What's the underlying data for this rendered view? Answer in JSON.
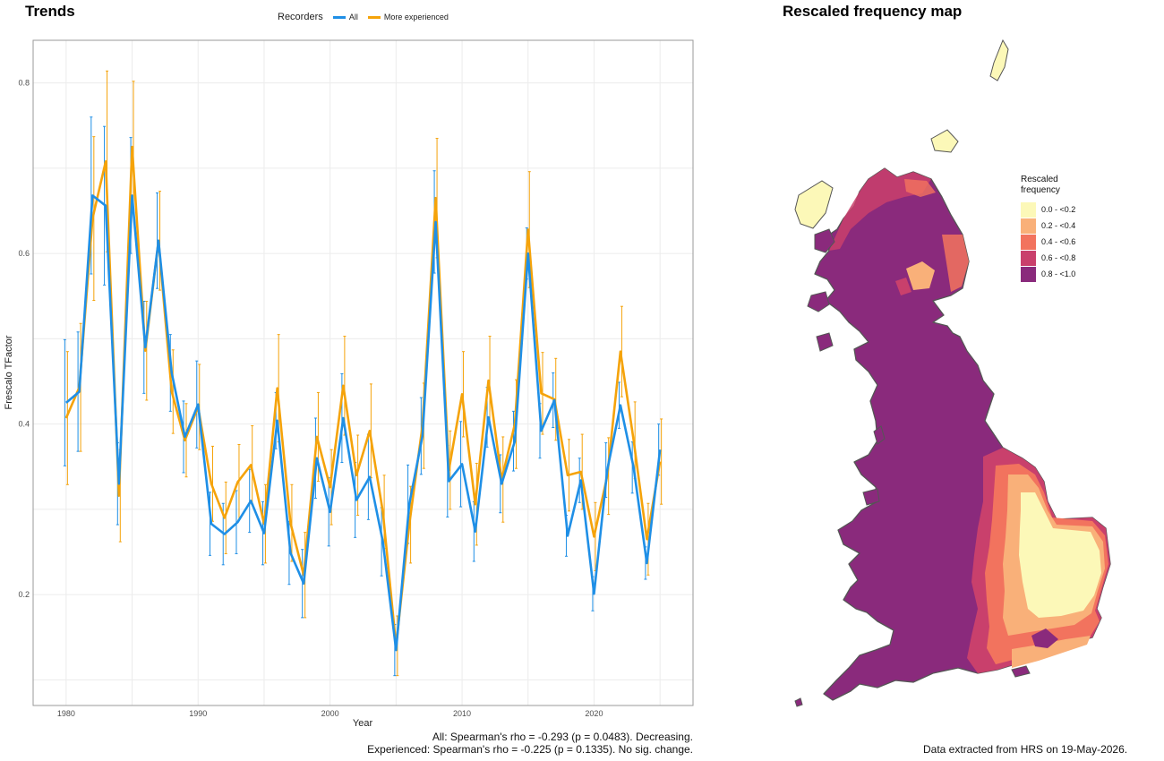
{
  "left_panel": {
    "title": "Trends"
  },
  "legend": {
    "title": "Recorders",
    "items": [
      {
        "label": "All",
        "color": "#1f8fe6"
      },
      {
        "label": "More experienced",
        "color": "#f5a30a"
      }
    ]
  },
  "stats": {
    "all": "All: Spearman's rho = -0.293 (p = 0.0483). Decreasing.",
    "experienced": "Experienced: Spearman's rho = -0.225 (p = 0.1335). No sig. change."
  },
  "right_panel": {
    "title": "Rescaled frequency map"
  },
  "map_legend": {
    "title": "Rescaled frequency",
    "classes": [
      {
        "label": "0.0 - <0.2",
        "color": "#fcf8b8"
      },
      {
        "label": "0.2 - <0.4",
        "color": "#f9b079"
      },
      {
        "label": "0.4 - <0.6",
        "color": "#f2735e"
      },
      {
        "label": "0.6 - <0.8",
        "color": "#c9406c"
      },
      {
        "label": "0.8 - <1.0",
        "color": "#8a2a7c"
      }
    ]
  },
  "footer": "Data extracted from HRS on 19-May-2026.",
  "chart_data": {
    "type": "line",
    "xlabel": "Year",
    "ylabel": "Frescalo TFactor",
    "xlim": [
      1977.5,
      2027.5
    ],
    "ylim": [
      0.07,
      0.85
    ],
    "xticks": [
      1980,
      1990,
      2000,
      2010,
      2020
    ],
    "yticks": [
      0.2,
      0.4,
      0.6,
      0.8
    ],
    "grid": true,
    "legend_position": "top",
    "x": [
      1980,
      1981,
      1982,
      1983,
      1984,
      1985,
      1986,
      1987,
      1988,
      1989,
      1990,
      1991,
      1992,
      1993,
      1994,
      1995,
      1996,
      1997,
      1998,
      1999,
      2000,
      2001,
      2002,
      2003,
      2004,
      2005,
      2006,
      2007,
      2008,
      2009,
      2010,
      2011,
      2012,
      2013,
      2014,
      2015,
      2016,
      2017,
      2018,
      2019,
      2020,
      2021,
      2022,
      2023,
      2024,
      2025
    ],
    "series": [
      {
        "name": "All",
        "color": "#1f8fe6",
        "values": [
          0.425,
          0.438,
          0.668,
          0.656,
          0.33,
          0.668,
          0.49,
          0.615,
          0.46,
          0.385,
          0.423,
          0.283,
          0.271,
          0.285,
          0.31,
          0.272,
          0.404,
          0.249,
          0.213,
          0.36,
          0.297,
          0.407,
          0.311,
          0.338,
          0.262,
          0.135,
          0.306,
          0.386,
          0.637,
          0.333,
          0.353,
          0.274,
          0.408,
          0.33,
          0.38,
          0.6,
          0.392,
          0.428,
          0.269,
          0.334,
          0.201,
          0.346,
          0.422,
          0.349,
          0.237,
          0.37
        ],
        "err": [
          0.074,
          0.07,
          0.092,
          0.093,
          0.048,
          0.068,
          0.054,
          0.056,
          0.045,
          0.042,
          0.051,
          0.037,
          0.036,
          0.037,
          0.037,
          0.037,
          0.033,
          0.037,
          0.04,
          0.047,
          0.04,
          0.052,
          0.044,
          0.05,
          0.04,
          0.03,
          0.046,
          0.045,
          0.06,
          0.042,
          0.05,
          0.035,
          0.035,
          0.034,
          0.035,
          0.03,
          0.032,
          0.032,
          0.024,
          0.026,
          0.02,
          0.032,
          0.027,
          0.03,
          0.019,
          0.03
        ]
      },
      {
        "name": "More experienced",
        "color": "#f5a30a",
        "values": [
          0.407,
          0.443,
          0.641,
          0.708,
          0.316,
          0.725,
          0.486,
          0.615,
          0.438,
          0.381,
          0.42,
          0.33,
          0.29,
          0.332,
          0.352,
          0.283,
          0.442,
          0.284,
          0.223,
          0.385,
          0.326,
          0.445,
          0.34,
          0.392,
          0.297,
          0.14,
          0.282,
          0.398,
          0.665,
          0.346,
          0.435,
          0.306,
          0.451,
          0.335,
          0.4,
          0.628,
          0.436,
          0.429,
          0.34,
          0.344,
          0.268,
          0.339,
          0.485,
          0.381,
          0.265,
          0.356
        ],
        "err": [
          0.078,
          0.075,
          0.096,
          0.106,
          0.054,
          0.077,
          0.058,
          0.058,
          0.049,
          0.043,
          0.05,
          0.044,
          0.042,
          0.044,
          0.046,
          0.046,
          0.063,
          0.045,
          0.05,
          0.052,
          0.044,
          0.058,
          0.047,
          0.055,
          0.043,
          0.035,
          0.045,
          0.05,
          0.07,
          0.046,
          0.05,
          0.048,
          0.052,
          0.05,
          0.052,
          0.068,
          0.048,
          0.048,
          0.042,
          0.044,
          0.04,
          0.045,
          0.053,
          0.045,
          0.042,
          0.05
        ]
      }
    ]
  }
}
